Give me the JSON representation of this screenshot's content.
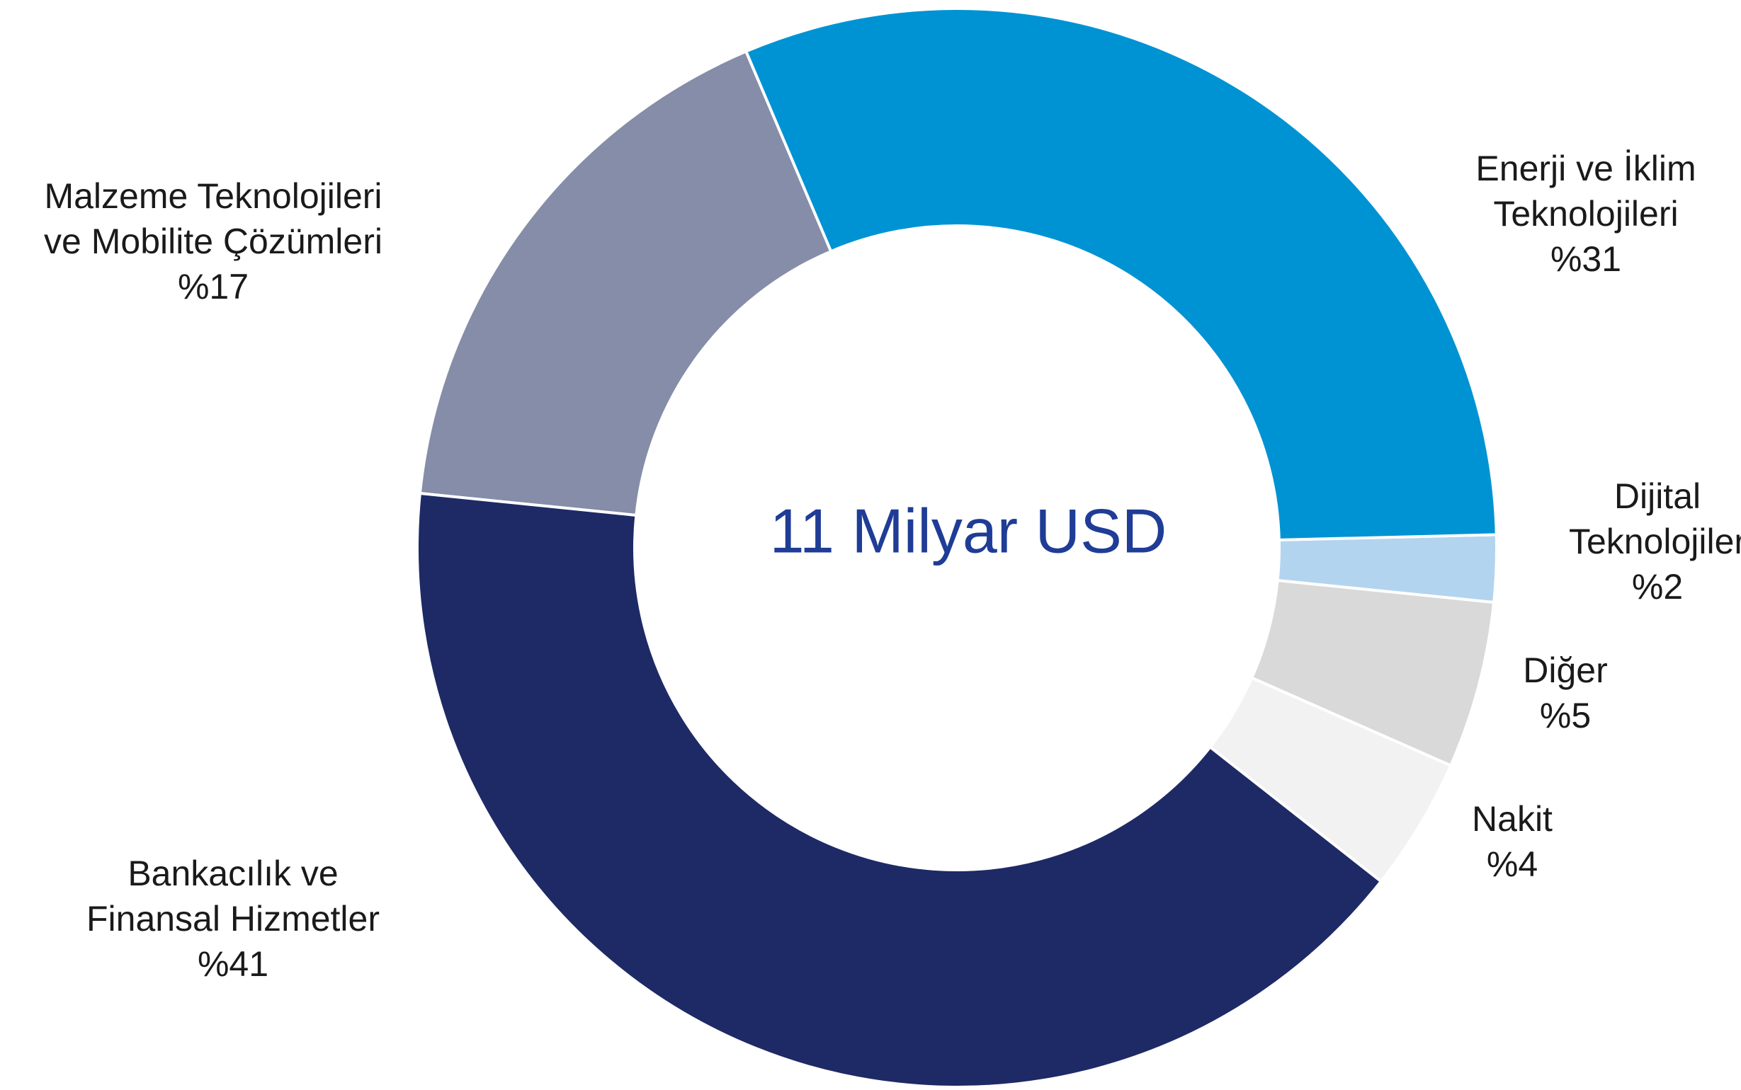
{
  "chart_data": {
    "type": "donut",
    "center_label": "11 Milyar USD",
    "categories": [
      "Enerji ve İklim\nTeknolojileri",
      "Dijital\nTeknolojiler",
      "Diğer",
      "Nakit",
      "Bankacılık ve\nFinansal Hizmetler",
      "Malzeme Teknolojileri\nve Mobilite Çözümleri"
    ],
    "values": [
      31,
      2,
      5,
      4,
      41,
      17
    ],
    "value_labels": [
      "%31",
      "%2",
      "%5",
      "%4",
      "%41",
      "%17"
    ],
    "colors": [
      "#0093d3",
      "#b3d4ef",
      "#d9d9d9",
      "#f2f2f2",
      "#1e2a66",
      "#858da8"
    ]
  }
}
